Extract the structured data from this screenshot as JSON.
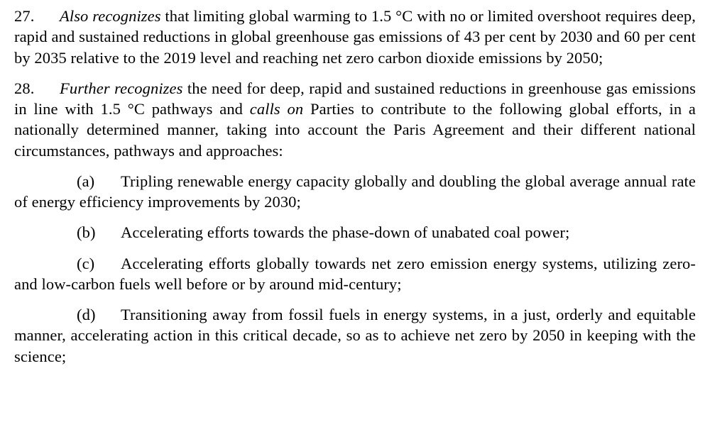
{
  "typography": {
    "font_family": "Times New Roman",
    "font_size_pt": 17,
    "line_height": 1.3,
    "text_color": "#000000",
    "background_color": "#ffffff",
    "alignment": "justify",
    "italic_segments": [
      "Also recognizes",
      "Further recognizes",
      "calls on"
    ]
  },
  "paragraphs": [
    {
      "number": "27.",
      "op_phrase": "Also recognizes",
      "rest": " that limiting global warming to 1.5 °C with no or limited overshoot requires deep, rapid and sustained reductions in global greenhouse gas emissions of 43 per cent by 2030 and 60 per cent by 2035 relative to the 2019 level and reaching net zero carbon dioxide emissions by 2050;"
    },
    {
      "number": "28.",
      "op_phrase": "Further recognizes",
      "pre_calls": " the need for deep, rapid and sustained reductions in greenhouse gas emissions in line with 1.5 °C pathways and ",
      "calls_phrase": "calls on",
      "post_calls": " Parties to contribute to the following global efforts, in a nationally determined manner, taking into account the Paris Agreement and their different national circumstances, pathways and approaches:"
    }
  ],
  "subitems": [
    {
      "letter": "(a)",
      "text": "Tripling renewable energy capacity globally and doubling the global average annual rate of energy efficiency improvements by 2030;"
    },
    {
      "letter": "(b)",
      "text": "Accelerating efforts towards the phase-down of unabated coal power;"
    },
    {
      "letter": "(c)",
      "text": "Accelerating efforts globally towards net zero emission energy systems, utilizing zero- and low-carbon fuels well before or by around mid-century;"
    },
    {
      "letter": "(d)",
      "text": "Transitioning away from fossil fuels in energy systems, in a just, orderly and equitable manner, accelerating action in this critical decade, so as to achieve net zero by 2050 in keeping with the science;"
    }
  ]
}
